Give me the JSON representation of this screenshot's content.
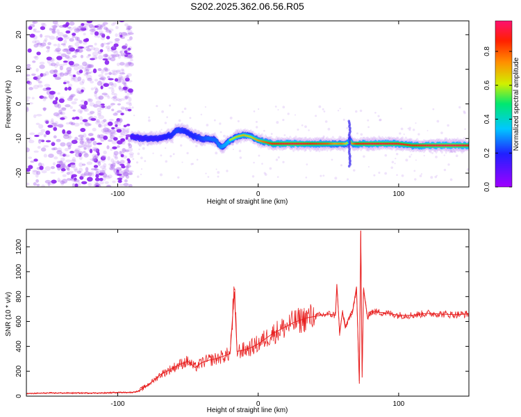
{
  "figure_title": "S202.2025.362.06.56.R05",
  "chart_data": [
    {
      "type": "heatmap",
      "title": "",
      "xlabel": "Height of straight line (km)",
      "ylabel": "Frequency (Hz)",
      "xlim": [
        -165,
        150
      ],
      "ylim": [
        -24,
        24
      ],
      "xticks": [
        -100,
        0,
        100
      ],
      "yticks": [
        -20,
        -10,
        0,
        10,
        20
      ],
      "colorbar": {
        "label": "Normalized spectral amplitude",
        "range": [
          0.0,
          0.98
        ],
        "ticks": [
          0.0,
          0.2,
          0.4,
          0.6,
          0.8
        ],
        "colormap": [
          "#a000ff",
          "#2020ff",
          "#00c8ff",
          "#00e870",
          "#d0f000",
          "#ff9000",
          "#ff2000",
          "#ff1070"
        ]
      },
      "noise_region": {
        "x_range": [
          -165,
          -90
        ],
        "freq_range": [
          -24,
          24
        ],
        "typical_amplitude": 0.1
      },
      "ridge": {
        "x": [
          -90,
          -80,
          -70,
          -62,
          -57,
          -52,
          -45,
          -40,
          -35,
          -30,
          -27,
          -24,
          -20,
          -15,
          -10,
          -5,
          0,
          10,
          20,
          30,
          40,
          50,
          55,
          60,
          63,
          65,
          67,
          70,
          80,
          90,
          100,
          110,
          120,
          130,
          140,
          150
        ],
        "freq": [
          -9.5,
          -10,
          -10,
          -9,
          -7.5,
          -8,
          -9.5,
          -10,
          -10,
          -10.5,
          -12.5,
          -12,
          -10.5,
          -9.5,
          -9,
          -9.5,
          -10.5,
          -11.5,
          -11.5,
          -11.5,
          -11.5,
          -11.5,
          -11.5,
          -11.5,
          -11.5,
          -10.5,
          -11.5,
          -11.5,
          -11.5,
          -11.5,
          -11.5,
          -12,
          -12,
          -12,
          -12,
          -12
        ],
        "amplitude": [
          0.2,
          0.25,
          0.25,
          0.3,
          0.35,
          0.3,
          0.3,
          0.35,
          0.4,
          0.4,
          0.45,
          0.5,
          0.55,
          0.6,
          0.65,
          0.6,
          0.7,
          0.85,
          0.9,
          0.9,
          0.85,
          0.8,
          0.7,
          0.75,
          0.6,
          0.5,
          0.7,
          0.85,
          0.9,
          0.9,
          0.88,
          0.85,
          0.92,
          0.95,
          0.95,
          0.9
        ]
      }
    },
    {
      "type": "line",
      "title": "",
      "xlabel": "Height of straight line (km)",
      "ylabel": "SNR (10 * v/v)",
      "xlim": [
        -165,
        150
      ],
      "ylim": [
        0,
        1340
      ],
      "xticks": [
        -100,
        0,
        100
      ],
      "yticks": [
        0,
        200,
        400,
        600,
        800,
        1000,
        1200
      ],
      "series": [
        {
          "color": "#e82020",
          "x": [
            -165,
            -150,
            -130,
            -110,
            -100,
            -90,
            -85,
            -80,
            -75,
            -70,
            -65,
            -60,
            -55,
            -50,
            -45,
            -40,
            -35,
            -30,
            -25,
            -20,
            -17,
            -15,
            -10,
            -5,
            0,
            5,
            10,
            15,
            20,
            25,
            30,
            35,
            40,
            45,
            50,
            55,
            56,
            58,
            60,
            62,
            65,
            67,
            70,
            72,
            73,
            74,
            75,
            78,
            80,
            90,
            100,
            110,
            120,
            130,
            140,
            150
          ],
          "y": [
            20,
            25,
            25,
            25,
            30,
            30,
            40,
            80,
            120,
            170,
            200,
            230,
            260,
            280,
            230,
            270,
            290,
            300,
            320,
            340,
            840,
            360,
            370,
            390,
            420,
            460,
            500,
            530,
            560,
            590,
            610,
            630,
            640,
            650,
            660,
            650,
            900,
            500,
            680,
            550,
            640,
            660,
            880,
            100,
            1330,
            150,
            860,
            620,
            680,
            670,
            650,
            650,
            665,
            660,
            655,
            660
          ]
        }
      ]
    }
  ]
}
